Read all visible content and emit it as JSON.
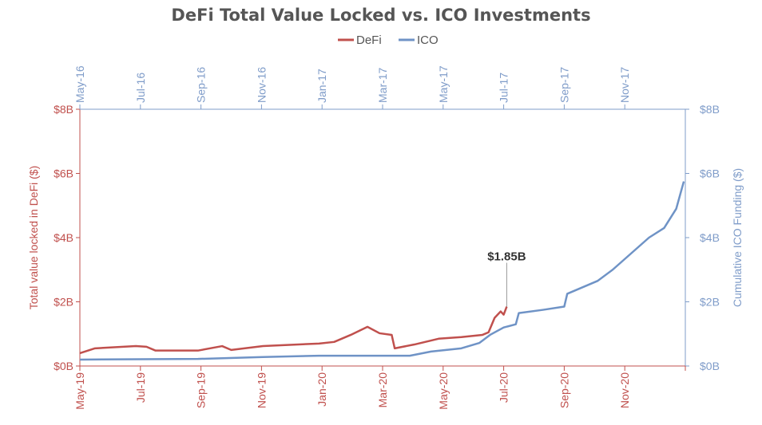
{
  "chart_data": {
    "type": "line",
    "title": "DeFi Total Value Locked vs. ICO Investments",
    "legend": {
      "placement": "top-center",
      "entries": [
        "DeFi",
        "ICO"
      ]
    },
    "colors": {
      "defi": "#c0504d",
      "ico": "#6f93c6",
      "axis_red": "#c0504d",
      "axis_blue": "#7f9cc9"
    },
    "x_unit": "months since start of axis",
    "x_bottom_ticks": [
      "May-19",
      "Jul-19",
      "Sep-19",
      "Nov-19",
      "Jan-20",
      "Mar-20",
      "May-20",
      "Jul-20",
      "Sep-20",
      "Nov-20"
    ],
    "x_top_ticks": [
      "May-16",
      "Jul-16",
      "Sep-16",
      "Nov-16",
      "Jan-17",
      "Mar-17",
      "May-17",
      "Jul-17",
      "Sep-17",
      "Nov-17"
    ],
    "xlim": [
      0,
      20
    ],
    "ylim": [
      0,
      8
    ],
    "y_left_ticks": [
      "$0B",
      "$2B",
      "$4B",
      "$6B",
      "$8B"
    ],
    "y_right_ticks": [
      "$0B",
      "$2B",
      "$4B",
      "$6B",
      "$8B"
    ],
    "ylabel_left": "Total value locked in DeFi ($)",
    "ylabel_right": "Cumulative ICO Funding ($)",
    "series": [
      {
        "name": "DeFi",
        "axis": "bottom-left",
        "x": [
          0,
          0.5,
          1.85,
          2.2,
          2.5,
          3.9,
          4.7,
          5,
          6.05,
          7.9,
          8.4,
          8.95,
          9.5,
          9.9,
          10.3,
          10.4,
          11.05,
          11.85,
          12.6,
          13.3,
          13.5,
          13.7,
          13.9,
          14.0,
          14.1
        ],
        "values": [
          0.4,
          0.55,
          0.62,
          0.6,
          0.48,
          0.48,
          0.62,
          0.5,
          0.62,
          0.7,
          0.75,
          0.97,
          1.22,
          1.02,
          0.97,
          0.55,
          0.67,
          0.85,
          0.9,
          0.97,
          1.05,
          1.5,
          1.7,
          1.6,
          1.85
        ]
      },
      {
        "name": "ICO",
        "axis": "top-right",
        "x": [
          0,
          3.9,
          6.05,
          7.9,
          10.9,
          11.6,
          12.6,
          13.2,
          13.55,
          14,
          14.4,
          14.5,
          15.3,
          16,
          16.1,
          17.1,
          17.6,
          18.2,
          18.8,
          19.3,
          19.7,
          19.95
        ],
        "values": [
          0.2,
          0.22,
          0.28,
          0.32,
          0.32,
          0.45,
          0.55,
          0.72,
          0.97,
          1.2,
          1.3,
          1.65,
          1.75,
          1.85,
          2.25,
          2.65,
          3.0,
          3.5,
          4.0,
          4.3,
          4.9,
          5.75
        ]
      }
    ],
    "annotation": {
      "text": "$1.85B",
      "series": "DeFi",
      "x": 14.1,
      "y": 1.85
    }
  }
}
